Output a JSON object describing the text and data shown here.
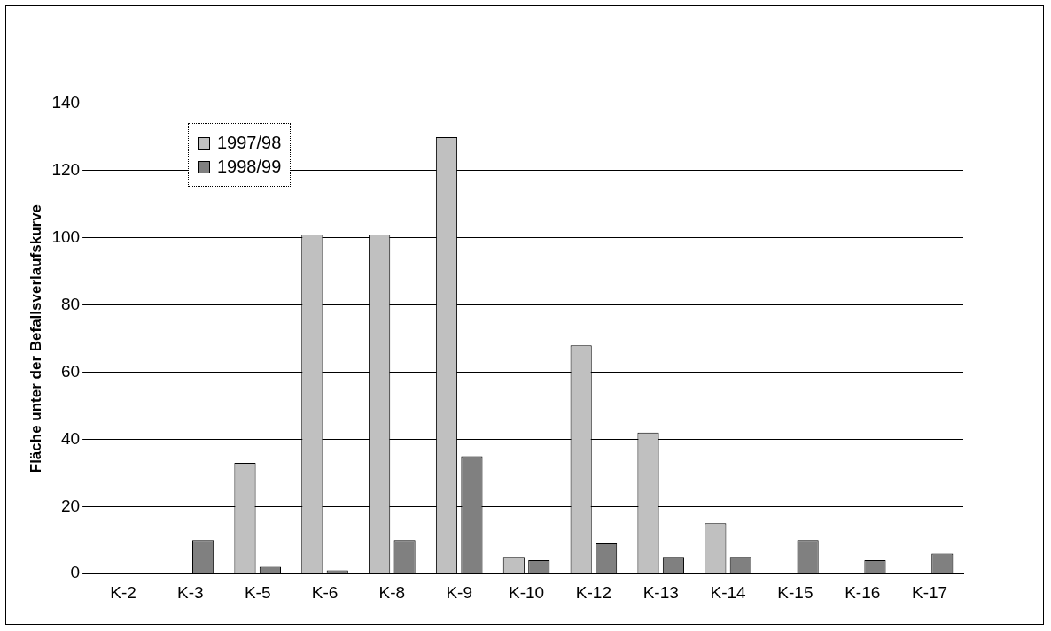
{
  "chart_data": {
    "type": "bar",
    "ylabel": "Fläche unter der Befallsverlaufskurve",
    "categories": [
      "K-2",
      "K-3",
      "K-5",
      "K-6",
      "K-8",
      "K-9",
      "K-10",
      "K-12",
      "K-13",
      "K-14",
      "K-15",
      "K-16",
      "K-17"
    ],
    "series": [
      {
        "name": "1997/98",
        "color": "#c0c0c0",
        "values": [
          0,
          0,
          33,
          101,
          101,
          130,
          5,
          68,
          42,
          15,
          0,
          0,
          0
        ]
      },
      {
        "name": "1998/99",
        "color": "#808080",
        "values": [
          0,
          10,
          2,
          1,
          10,
          35,
          4,
          9,
          5,
          5,
          10,
          4,
          6
        ]
      }
    ],
    "ylim": [
      0,
      140
    ],
    "yticks": [
      0,
      20,
      40,
      60,
      80,
      100,
      120,
      140
    ],
    "grid": "y",
    "legend": "top left"
  }
}
